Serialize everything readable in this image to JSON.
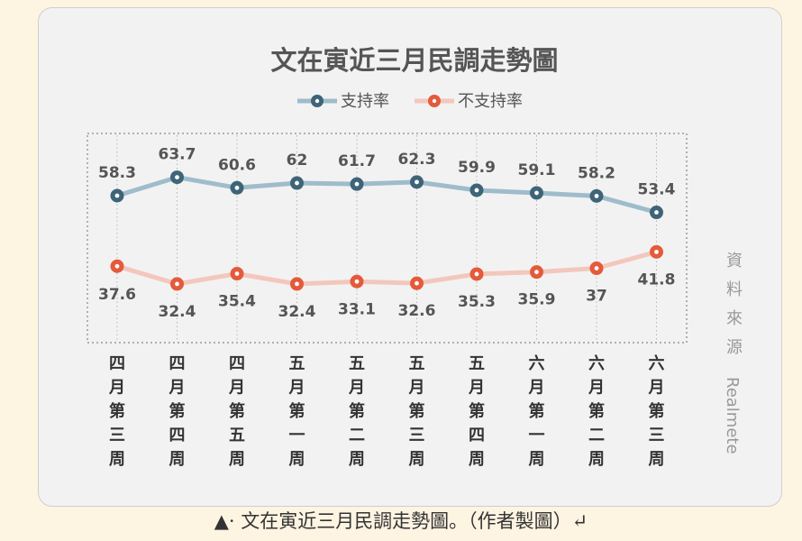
{
  "caption": "▲· 文在寅近三月民調走勢圖。（作者製圖）↵",
  "source_label": "資料來源",
  "source_name": "Realmete",
  "colors": {
    "support_line": "#9fbccb",
    "support_marker": "#3e6478",
    "oppose_line": "#f3c7bc",
    "oppose_marker": "#e45a3a"
  },
  "chart_data": {
    "type": "line",
    "title": "文在寅近三月民調走勢圖",
    "xlabel": "",
    "ylabel": "",
    "grid": true,
    "legend_position": "top-center",
    "categories": [
      "四月第三周",
      "四月第四周",
      "四月第五周",
      "五月第一周",
      "五月第二周",
      "五月第三周",
      "五月第四周",
      "六月第一周",
      "六月第二周",
      "六月第三周"
    ],
    "series": [
      {
        "name": "支持率",
        "values": [
          58.3,
          63.7,
          60.6,
          62,
          61.7,
          62.3,
          59.9,
          59.1,
          58.2,
          53.4
        ]
      },
      {
        "name": "不支持率",
        "values": [
          37.6,
          32.4,
          35.4,
          32.4,
          33.1,
          32.6,
          35.3,
          35.9,
          37,
          41.8
        ]
      }
    ]
  }
}
